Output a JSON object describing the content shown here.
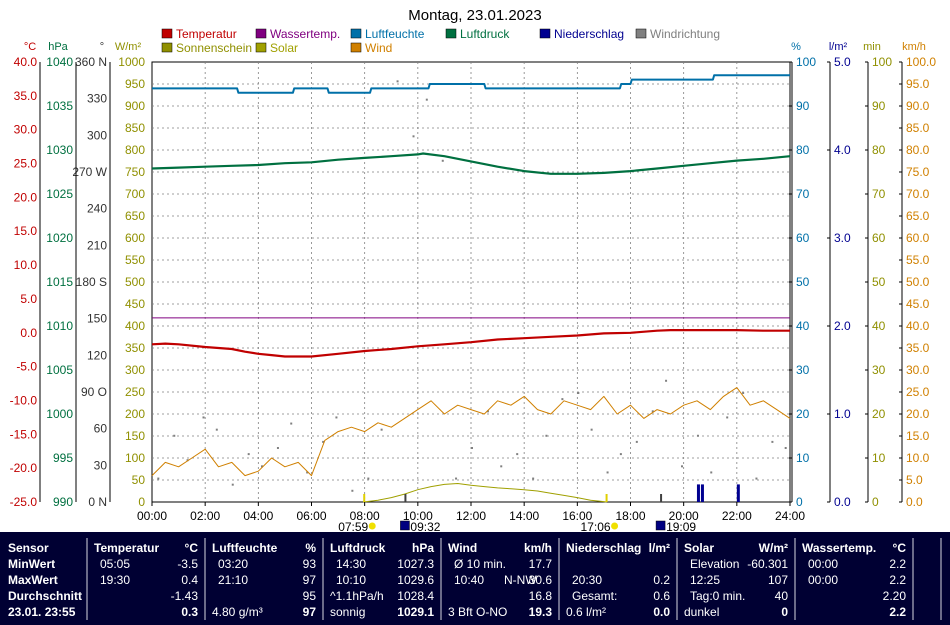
{
  "title": "Montag, 23.01.2023",
  "colors": {
    "temperatur": "#c00000",
    "wassertemp": "#800080",
    "luftfeuchte": "#0070a8",
    "luftdruck": "#007040",
    "niederschlag": "#000090",
    "windrichtung": "#808080",
    "sonnenschein": "#909000",
    "solar": "#a0a000",
    "wind": "#d08000",
    "grid": "#808080",
    "panel_bg": "#000033"
  },
  "legend": [
    {
      "key": "temperatur",
      "label": "Temperatur"
    },
    {
      "key": "wassertemp",
      "label": "Wassertemp."
    },
    {
      "key": "luftfeuchte",
      "label": "Luftfeuchte"
    },
    {
      "key": "luftdruck",
      "label": "Luftdruck"
    },
    {
      "key": "niederschlag",
      "label": "Niederschlag"
    },
    {
      "key": "windrichtung",
      "label": "Windrichtung"
    },
    {
      "key": "sonnenschein",
      "label": "Sonnenschein"
    },
    {
      "key": "solar",
      "label": "Solar"
    },
    {
      "key": "wind",
      "label": "Wind"
    }
  ],
  "axis_units": {
    "temp": "°C",
    "hpa": "hPa",
    "deg": "°",
    "solar": "W/m²",
    "humidity": "%",
    "rain": "l/m²",
    "min": "min",
    "wind": "km/h"
  },
  "axis_ticks": {
    "temp": [
      "40.0",
      "35.0",
      "30.0",
      "25.0",
      "20.0",
      "15.0",
      "10.0",
      "5.0",
      "0.0",
      "-5.0",
      "-10.0",
      "-15.0",
      "-20.0",
      "-25.0"
    ],
    "hpa": [
      "1040",
      "1035",
      "1030",
      "1025",
      "1020",
      "1015",
      "1010",
      "1005",
      "1000",
      "995",
      "990"
    ],
    "deg": [
      "360 N",
      "330",
      "300",
      "270 W",
      "240",
      "210",
      "180 S",
      "150",
      "120",
      "90  O",
      "60",
      "30",
      "0 N"
    ],
    "solar": [
      "1000",
      "950",
      "900",
      "850",
      "800",
      "750",
      "700",
      "650",
      "600",
      "550",
      "500",
      "450",
      "400",
      "350",
      "300",
      "250",
      "200",
      "150",
      "100",
      "50",
      "0"
    ],
    "humidity": [
      "100",
      "90",
      "80",
      "70",
      "60",
      "50",
      "40",
      "30",
      "20",
      "10",
      "0"
    ],
    "rain": [
      "5.0",
      "4.0",
      "3.0",
      "2.0",
      "1.0",
      "0.0"
    ],
    "min": [
      "100",
      "90",
      "80",
      "70",
      "60",
      "50",
      "40",
      "30",
      "20",
      "10",
      "0"
    ],
    "wind": [
      "100.0",
      "95.0",
      "90.0",
      "85.0",
      "80.0",
      "75.0",
      "70.0",
      "65.0",
      "60.0",
      "55.0",
      "50.0",
      "45.0",
      "40.0",
      "35.0",
      "30.0",
      "25.0",
      "20.0",
      "15.0",
      "10.0",
      "5.0",
      "0.0"
    ]
  },
  "time_ticks": [
    "00:00",
    "02:00",
    "04:00",
    "06:00",
    "08:00",
    "10:00",
    "12:00",
    "14:00",
    "16:00",
    "18:00",
    "20:00",
    "22:00",
    "24:00"
  ],
  "sun_markers": {
    "sunrise": "07:59",
    "moon_1": "09:32",
    "sunset": "17:06",
    "moon_2": "19:09"
  },
  "chart_data": {
    "type": "line",
    "x_unit": "hour",
    "xlim": [
      0,
      24
    ],
    "series": [
      {
        "name": "Temperatur",
        "axis": "temp",
        "ylim": [
          -25,
          40
        ],
        "x": [
          0,
          0.5,
          1,
          2,
          3,
          3.5,
          4,
          4.5,
          5,
          5.5,
          6,
          7,
          8,
          9,
          10,
          11,
          12,
          13,
          14,
          15,
          16,
          17,
          18,
          19,
          19.5,
          20,
          21,
          22,
          23,
          24
        ],
        "values": [
          -1.7,
          -1.6,
          -1.7,
          -2.1,
          -2.4,
          -2.8,
          -3.1,
          -3.3,
          -3.5,
          -3.5,
          -3.5,
          -3.1,
          -2.7,
          -2.4,
          -2.0,
          -1.7,
          -1.4,
          -1.0,
          -0.8,
          -0.6,
          -0.4,
          -0.1,
          0.0,
          0.3,
          0.4,
          0.4,
          0.4,
          0.4,
          0.3,
          0.3
        ]
      },
      {
        "name": "Wassertemp.",
        "axis": "temp",
        "ylim": [
          -25,
          40
        ],
        "x": [
          0,
          24
        ],
        "values": [
          2.2,
          2.2
        ]
      },
      {
        "name": "Luftfeuchte",
        "axis": "humidity",
        "ylim": [
          0,
          100
        ],
        "x": [
          0,
          1.3,
          1.35,
          3.2,
          3.25,
          5.3,
          5.35,
          6.6,
          6.65,
          8.2,
          8.25,
          10.4,
          10.45,
          12.5,
          12.55,
          13.1,
          13.2,
          16.2,
          16.25,
          17.6,
          17.65,
          18.0,
          18.05,
          21.1,
          21.15,
          24
        ],
        "values": [
          94,
          94,
          94,
          94,
          93,
          93,
          94,
          94,
          93,
          93,
          94,
          94,
          95,
          95,
          94,
          94,
          94,
          94,
          94,
          94,
          95,
          95,
          96,
          96,
          97,
          97
        ]
      },
      {
        "name": "Luftdruck",
        "axis": "hpa",
        "ylim": [
          990,
          1040
        ],
        "x": [
          0,
          1,
          2,
          3,
          4,
          5,
          6,
          7,
          8,
          9,
          10,
          10.2,
          11,
          12,
          13,
          14,
          15,
          16,
          17,
          18,
          19,
          20,
          21,
          22,
          23,
          24
        ],
        "values": [
          1027.9,
          1028.0,
          1028.1,
          1028.2,
          1028.3,
          1028.5,
          1028.6,
          1028.9,
          1029.1,
          1029.3,
          1029.5,
          1029.6,
          1029.3,
          1028.7,
          1028.1,
          1027.6,
          1027.3,
          1027.3,
          1027.4,
          1027.6,
          1027.9,
          1028.2,
          1028.5,
          1028.8,
          1029.0,
          1029.3
        ]
      },
      {
        "name": "Wind",
        "axis": "wind",
        "ylim": [
          0,
          100
        ],
        "x": [
          0,
          0.5,
          1,
          1.5,
          2,
          2.5,
          3,
          3.5,
          4,
          4.5,
          5,
          5.5,
          6,
          6.5,
          7,
          7.5,
          8,
          8.5,
          9,
          9.5,
          10,
          10.5,
          11,
          11.5,
          12,
          12.5,
          13,
          13.5,
          14,
          14.5,
          15,
          15.5,
          16,
          16.5,
          17,
          17.5,
          18,
          18.5,
          19,
          19.5,
          20,
          20.5,
          21,
          21.5,
          22,
          22.5,
          23,
          23.5,
          24
        ],
        "values": [
          6,
          9,
          8,
          10,
          12,
          8,
          9,
          6,
          7,
          10,
          8,
          9,
          6,
          14,
          16,
          17,
          16,
          18,
          17,
          19,
          21,
          23,
          20,
          22,
          21,
          20,
          23,
          22,
          24,
          21,
          20,
          23,
          22,
          21,
          24,
          20,
          22,
          19,
          21,
          20,
          22,
          23,
          21,
          24,
          26,
          22,
          23,
          21,
          19
        ]
      },
      {
        "name": "Solar",
        "axis": "solar",
        "ylim": [
          0,
          1000
        ],
        "x": [
          7.95,
          8.5,
          9,
          9.5,
          10,
          10.5,
          11,
          11.5,
          12,
          12.5,
          13,
          13.5,
          14,
          14.5,
          15,
          15.5,
          16,
          16.5,
          17,
          17.1
        ],
        "values": [
          0,
          4,
          10,
          18,
          28,
          35,
          40,
          42,
          38,
          35,
          32,
          30,
          28,
          25,
          20,
          15,
          10,
          4,
          1,
          0
        ]
      },
      {
        "name": "Niederschlag",
        "axis": "rain",
        "ylim": [
          0,
          5
        ],
        "x": [
          20.5,
          20.65,
          22.0
        ],
        "values": [
          0.2,
          0.2,
          0.2
        ]
      }
    ],
    "windrichtung": {
      "axis": "deg",
      "ylim": [
        0,
        360
      ],
      "x": [
        0.2,
        0.8,
        1.3,
        1.9,
        2.4,
        3.0,
        3.6,
        4.1,
        4.7,
        5.2,
        5.8,
        6.4,
        6.9,
        7.5,
        8.1,
        8.6,
        9.2,
        9.8,
        10.3,
        10.9,
        11.4,
        12.0,
        12.6,
        13.1,
        13.7,
        14.3,
        14.8,
        15.4,
        16.0,
        16.5,
        17.1,
        17.6,
        18.2,
        18.8,
        19.3,
        19.9,
        20.5,
        21.0,
        21.6,
        22.2,
        22.7,
        23.3,
        23.8
      ],
      "values": [
        20,
        55,
        35,
        70,
        60,
        15,
        40,
        30,
        45,
        65,
        25,
        50,
        70,
        10,
        20,
        60,
        345,
        300,
        330,
        280,
        20,
        45,
        75,
        30,
        40,
        20,
        55,
        85,
        90,
        60,
        25,
        40,
        50,
        75,
        100,
        30,
        55,
        25,
        70,
        90,
        20,
        50,
        45
      ]
    }
  },
  "panel": {
    "sensor": {
      "header": "Sensor",
      "r1": "MinWert",
      "r2": "MaxWert",
      "r3": "Durchschnitt",
      "r4": "23.01. 23:55"
    },
    "temperatur": {
      "header": "Temperatur",
      "unit": "°C",
      "min_t": "05:05",
      "min_v": "-3.5",
      "max_t": "19:30",
      "max_v": "0.4",
      "avg_v": "-1.43",
      "cur_v": "0.3"
    },
    "luftfeuchte": {
      "header": "Luftfeuchte",
      "unit": "%",
      "min_t": "03:20",
      "min_v": "93",
      "max_t": "21:10",
      "max_v": "97",
      "avg_v": "95",
      "abs": "4.80 g/m³",
      "cur_v": "97"
    },
    "luftdruck": {
      "header": "Luftdruck",
      "unit": "hPa",
      "min_t": "14:30",
      "min_v": "1027.3",
      "max_t": "10:10",
      "max_v": "1029.6",
      "trend": "^1.1hPa/h",
      "avg_v": "1028.4",
      "wetter": "sonnig",
      "cur_v": "1029.1"
    },
    "wind": {
      "header": "Wind",
      "unit": "km/h",
      "l1": "Ø 10 min.",
      "v1": "17.7",
      "l2_t": "10:40",
      "l2_d": "N-NW",
      "v2": "30.6",
      "v3": "16.8",
      "l4": "3 Bft O-NO",
      "cur_v": "19.3"
    },
    "niederschlag": {
      "header": "Niederschlag",
      "unit": "l/m²",
      "l2_t": "20:30",
      "v2": "0.2",
      "l3": "Gesamt:",
      "v3": "0.6",
      "l4": "0.6 l/m²",
      "cur_v": "0.0"
    },
    "solar": {
      "header": "Solar",
      "unit": "W/m²",
      "l1": "Elevation",
      "v1": "-60.301",
      "l2_t": "12:25",
      "v2": "107",
      "l3": "Tag:0 min.",
      "v3": "40",
      "l4": "dunkel",
      "cur_v": "0"
    },
    "wassertemp": {
      "header": "Wassertemp.",
      "unit": "°C",
      "l1": "00:00",
      "v1": "2.2",
      "l2": "00:00",
      "v2": "2.2",
      "v3": "2.20",
      "cur_v": "2.2"
    }
  }
}
